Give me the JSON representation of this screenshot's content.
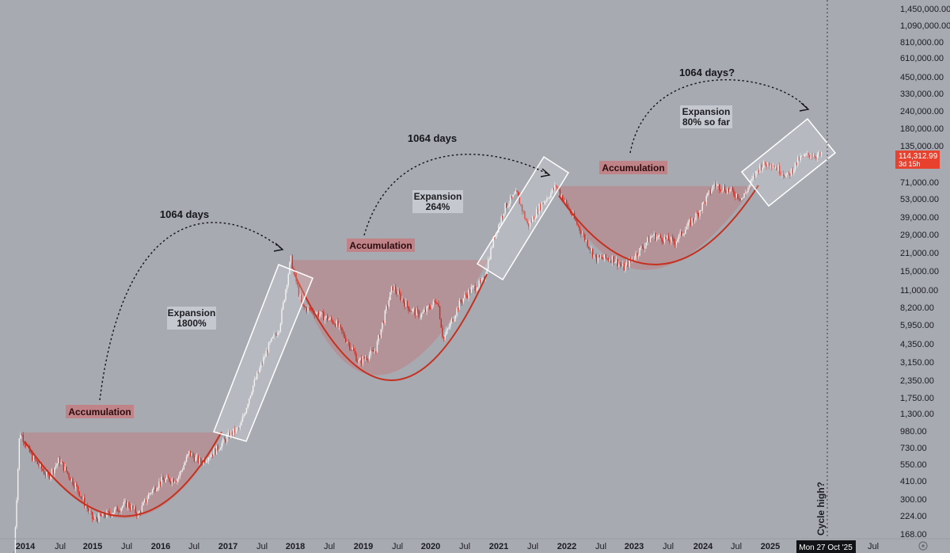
{
  "chart_data": {
    "type": "candlestick",
    "x_ticks": [
      "2014",
      "Jul",
      "2015",
      "Jul",
      "2016",
      "Jul",
      "2017",
      "Jul",
      "2018",
      "Jul",
      "2019",
      "Jul",
      "2020",
      "Jul",
      "2021",
      "Jul",
      "2022",
      "Jul",
      "2023",
      "Jul",
      "2024",
      "Jul",
      "2025",
      "Jul",
      "Jul"
    ],
    "y_ticks": [
      "1,450,000.00",
      "1,090,000.00",
      "810,000.00",
      "610,000.00",
      "450,000.00",
      "330,000.00",
      "240,000.00",
      "180,000.00",
      "135,000.00",
      "71,000.00",
      "53,000.00",
      "39,000.00",
      "29,000.00",
      "21,000.00",
      "15,000.00",
      "11,000.00",
      "8,200.00",
      "5,950.00",
      "4,350.00",
      "3,150.00",
      "2,350.00",
      "1,750.00",
      "1,300.00",
      "980.00",
      "730.00",
      "550.00",
      "410.00",
      "300.00",
      "224.00",
      "168.00"
    ],
    "y_scale": "log",
    "last_price": "114,312.99",
    "countdown": "3d 15h",
    "crosshair_date": "Mon 27 Oct '25",
    "vertical_marker_label": "Cycle high?",
    "price_path": [
      [
        "2013-11",
        120
      ],
      [
        "2013-12",
        1000
      ],
      [
        "2014-02",
        650
      ],
      [
        "2014-05",
        450
      ],
      [
        "2014-07",
        600
      ],
      [
        "2014-10",
        380
      ],
      [
        "2015-01",
        215
      ],
      [
        "2015-04",
        240
      ],
      [
        "2015-07",
        285
      ],
      [
        "2015-09",
        235
      ],
      [
        "2015-11",
        340
      ],
      [
        "2016-01",
        420
      ],
      [
        "2016-04",
        440
      ],
      [
        "2016-06",
        680
      ],
      [
        "2016-08",
        580
      ],
      [
        "2016-11",
        730
      ],
      [
        "2017-01",
        920
      ],
      [
        "2017-03",
        1050
      ],
      [
        "2017-05",
        2000
      ],
      [
        "2017-08",
        4200
      ],
      [
        "2017-10",
        6000
      ],
      [
        "2017-12",
        19500
      ],
      [
        "2018-02",
        8500
      ],
      [
        "2018-05",
        7500
      ],
      [
        "2018-08",
        6400
      ],
      [
        "2018-11",
        4000
      ],
      [
        "2018-12",
        3250
      ],
      [
        "2019-03",
        4000
      ],
      [
        "2019-06",
        12000
      ],
      [
        "2019-09",
        8200
      ],
      [
        "2019-11",
        7300
      ],
      [
        "2020-02",
        9600
      ],
      [
        "2020-03",
        4800
      ],
      [
        "2020-06",
        9200
      ],
      [
        "2020-08",
        11500
      ],
      [
        "2020-10",
        13000
      ],
      [
        "2020-12",
        28000
      ],
      [
        "2021-02",
        48000
      ],
      [
        "2021-04",
        60000
      ],
      [
        "2021-06",
        34000
      ],
      [
        "2021-08",
        47000
      ],
      [
        "2021-11",
        68000
      ],
      [
        "2022-02",
        40000
      ],
      [
        "2022-06",
        19500
      ],
      [
        "2022-09",
        19500
      ],
      [
        "2022-11",
        16500
      ],
      [
        "2023-02",
        23000
      ],
      [
        "2023-04",
        29000
      ],
      [
        "2023-08",
        26000
      ],
      [
        "2023-12",
        42000
      ],
      [
        "2024-03",
        70000
      ],
      [
        "2024-06",
        62000
      ],
      [
        "2024-08",
        55000
      ],
      [
        "2024-11",
        95000
      ],
      [
        "2025-01",
        102000
      ],
      [
        "2025-04",
        80000
      ],
      [
        "2025-06",
        108000
      ],
      [
        "2025-08",
        118000
      ],
      [
        "2025-10",
        114312.99
      ]
    ],
    "accumulation_zones": [
      {
        "label": "Accumulation",
        "start": "2013-12",
        "end": "2016-12",
        "top": 970,
        "bottom": 220,
        "bottom_date": "2015-07"
      },
      {
        "label": "Accumulation",
        "start": "2017-12",
        "end": "2020-11",
        "top": 19000,
        "bottom": 2600,
        "bottom_date": "2019-01"
      },
      {
        "label": "Accumulation",
        "start": "2021-11",
        "end": "2024-10",
        "top": 68000,
        "bottom": 16000,
        "bottom_date": "2023-01"
      }
    ],
    "expansion_labels": [
      {
        "line1": "Expansion",
        "line2": "1800%"
      },
      {
        "line1": "Expansion",
        "line2": "264%"
      },
      {
        "line1": "Expansion",
        "line2": "80% so far"
      }
    ],
    "cycle_arrows": [
      {
        "label": "1064 days"
      },
      {
        "label": "1064 days"
      },
      {
        "label": "1064 days?"
      }
    ],
    "colors": {
      "background": "#a8aab2",
      "zone_fill": "#b8898c",
      "curve": "#c5301f",
      "candle_up": "#f2f2f2",
      "candle_down": "#cf2a20",
      "last_price_badge": "#e8412d",
      "axis_text": "#1b1c22"
    }
  }
}
